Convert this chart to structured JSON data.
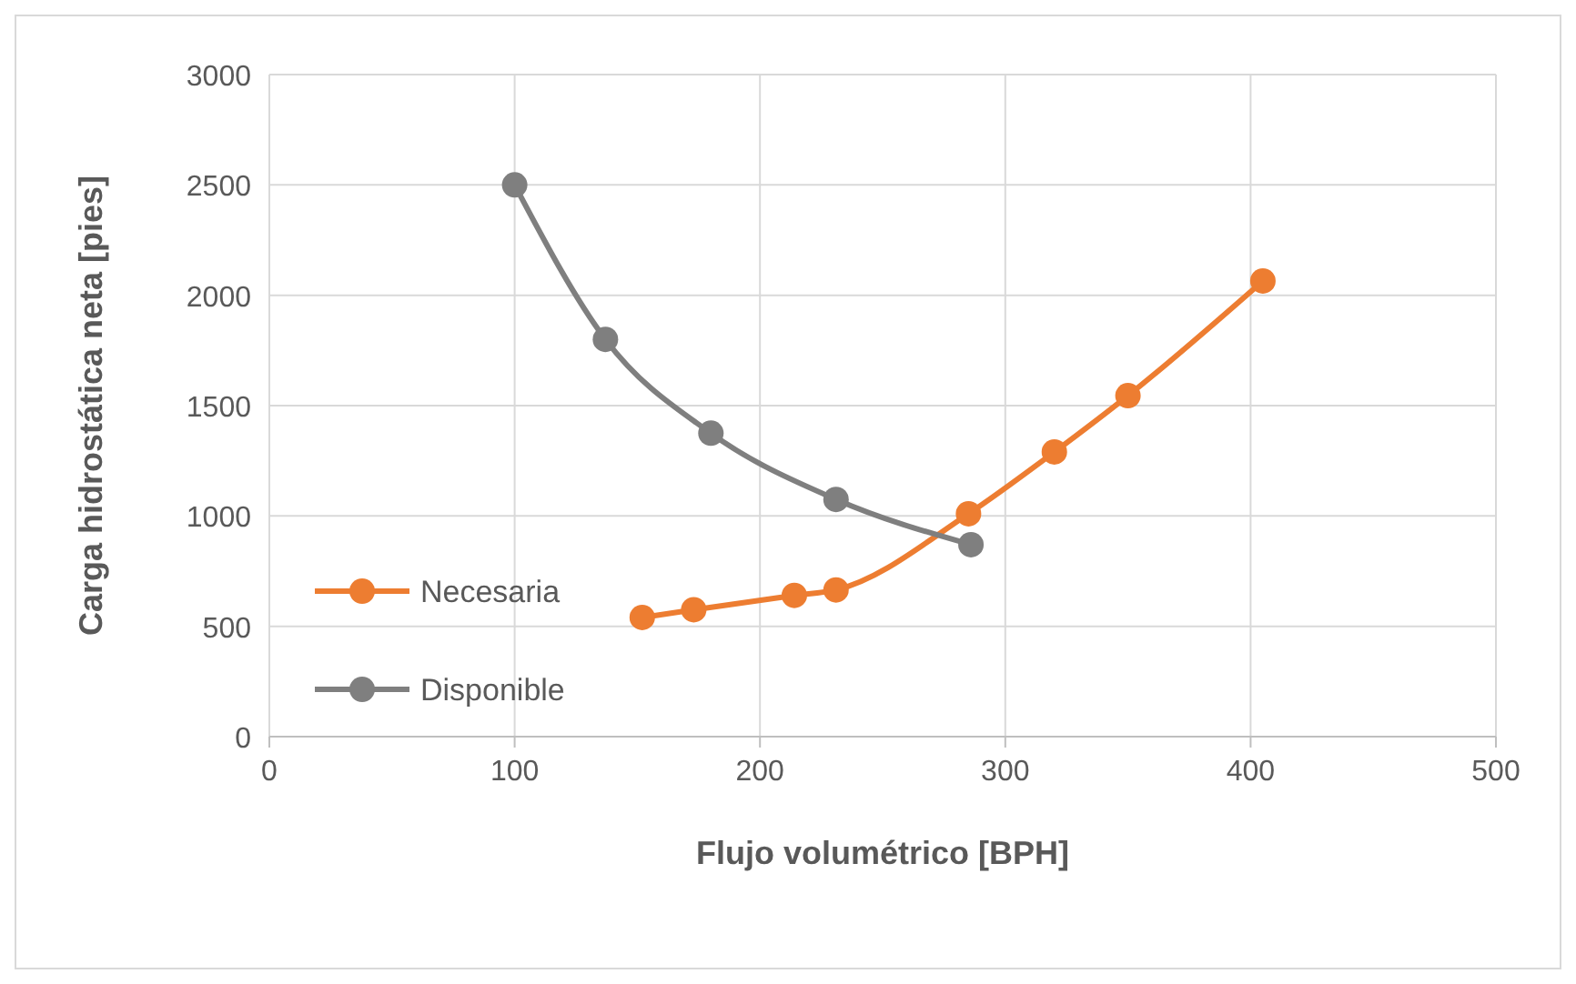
{
  "chart_data": {
    "type": "line",
    "xlabel": "Flujo volumétrico [BPH]",
    "ylabel": "Carga hidrostática neta [pies]",
    "series": [
      {
        "name": "Necesaria",
        "color": "#ed7d31",
        "x": [
          152,
          173,
          214,
          231,
          285,
          320,
          350,
          405
        ],
        "values": [
          540,
          575,
          640,
          665,
          1010,
          1290,
          1545,
          2065
        ]
      },
      {
        "name": "Disponible",
        "color": "#7f7f7f",
        "x": [
          100,
          137,
          180,
          231,
          286
        ],
        "values": [
          2500,
          1800,
          1375,
          1075,
          870
        ]
      }
    ],
    "xlim": [
      0,
      500
    ],
    "xticks": [
      0,
      100,
      200,
      300,
      400,
      500
    ],
    "ylim": [
      0,
      3000
    ],
    "yticks": [
      0,
      500,
      1000,
      1500,
      2000,
      2500,
      3000
    ],
    "grid": true,
    "legend": "bottom left",
    "marker": "circle",
    "line_style": "solid"
  }
}
